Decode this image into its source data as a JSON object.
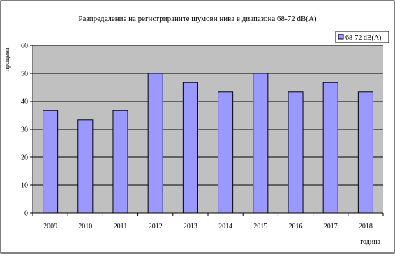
{
  "chart_data": {
    "type": "bar",
    "title": "Разпределение на регистрираните шумови нива в диапазона 68-72 dB(A)",
    "xlabel": "година",
    "ylabel": "процент",
    "categories": [
      "2009",
      "2010",
      "2011",
      "2012",
      "2013",
      "2014",
      "2015",
      "2016",
      "2017",
      "2018"
    ],
    "series": [
      {
        "name": "68-72 dB(A)",
        "values": [
          36.7,
          33.3,
          36.7,
          50,
          46.7,
          43.3,
          50,
          43.3,
          46.7,
          43.3
        ]
      }
    ],
    "ylim": [
      0,
      60
    ],
    "yticks": [
      "0",
      "10",
      "20",
      "30",
      "40",
      "50",
      "60"
    ],
    "grid": true,
    "legend": "top-right",
    "colors": {
      "bar": "#9999ff",
      "plot_bg": "#c0c0c0",
      "border": "#000000"
    }
  }
}
